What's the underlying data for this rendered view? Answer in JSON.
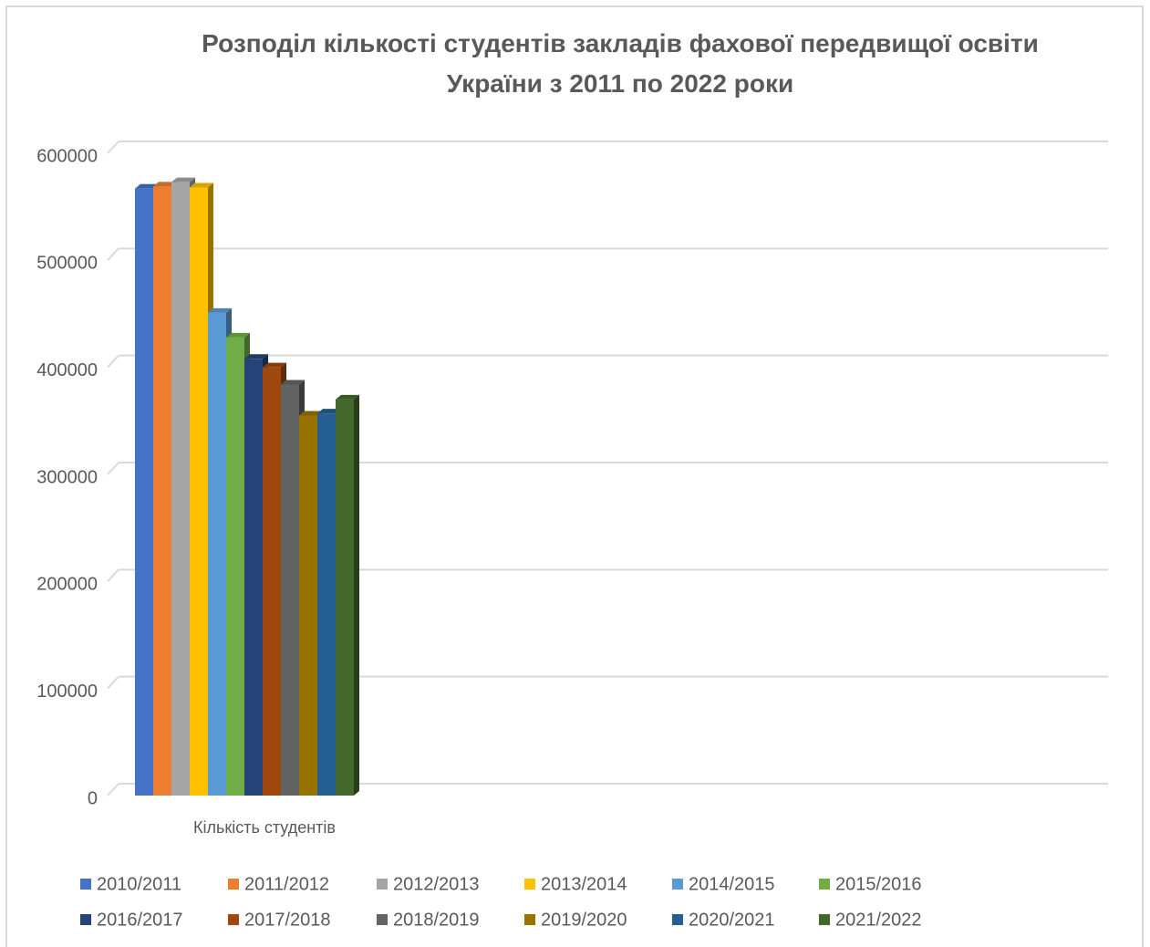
{
  "chart_data": {
    "type": "bar3d",
    "title": "Розподіл кількості студентів закладів  фахової передвищої освіти України з 2011 по 2022 роки",
    "categories": [
      "Кількість студентів"
    ],
    "series": [
      {
        "name": "2010/2011",
        "color": "#4472c4",
        "values": [
          567000
        ]
      },
      {
        "name": "2011/2012",
        "color": "#ed7d31",
        "values": [
          569000
        ]
      },
      {
        "name": "2012/2013",
        "color": "#a5a5a5",
        "values": [
          573000
        ]
      },
      {
        "name": "2013/2014",
        "color": "#ffc000",
        "values": [
          568000
        ]
      },
      {
        "name": "2014/2015",
        "color": "#5b9bd5",
        "values": [
          451000
        ]
      },
      {
        "name": "2015/2016",
        "color": "#70ad47",
        "values": [
          428000
        ]
      },
      {
        "name": "2016/2017",
        "color": "#264478",
        "values": [
          408000
        ]
      },
      {
        "name": "2017/2018",
        "color": "#9e480e",
        "values": [
          400000
        ]
      },
      {
        "name": "2018/2019",
        "color": "#636363",
        "values": [
          384000
        ]
      },
      {
        "name": "2019/2020",
        "color": "#997300",
        "values": [
          355000
        ]
      },
      {
        "name": "2020/2021",
        "color": "#255e91",
        "values": [
          357000
        ]
      },
      {
        "name": "2021/2022",
        "color": "#43682b",
        "values": [
          370000
        ]
      }
    ],
    "ylim": [
      0,
      600000
    ],
    "yticks": [
      0,
      100000,
      200000,
      300000,
      400000,
      500000,
      600000
    ],
    "grid": true,
    "legend": "bottom"
  }
}
